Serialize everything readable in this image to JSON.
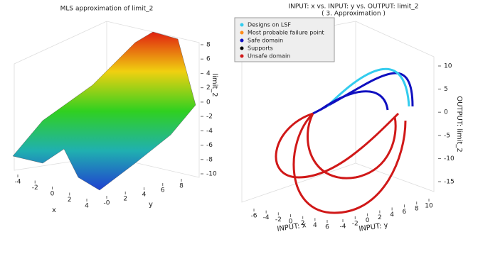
{
  "chart_data": [
    {
      "type": "surface3d",
      "title": "MLS approximation of limit_2",
      "xlabel": "x",
      "ylabel": "y",
      "zlabel": "limit_2",
      "xlim": [
        -4,
        4
      ],
      "xticks": [
        -4,
        -2,
        0,
        2,
        4
      ],
      "ylim": [
        0,
        8
      ],
      "yticks": [
        {
          "value": 0,
          "label": "-0"
        },
        2,
        4,
        6,
        8
      ],
      "zlim": [
        -10,
        8
      ],
      "zticks": [
        8,
        6,
        4,
        2,
        0,
        -2,
        -4,
        -6,
        -8,
        -10
      ]
    },
    {
      "type": "scatter3d",
      "title": "INPUT: x vs. INPUT: y vs. OUTPUT: limit_2",
      "subtitle": "( 3. Approximation )",
      "xlabel": "INPUT: x",
      "ylabel": "INPUT: y",
      "zlabel": "OUTPUT: limit_2",
      "xlim": [
        -6,
        6
      ],
      "xticks": [
        -6,
        -4,
        -2,
        0,
        2,
        4,
        6
      ],
      "ylim": [
        -4,
        10
      ],
      "yticks": [
        -4,
        -2,
        0,
        2,
        4,
        6,
        8,
        10
      ],
      "zlim": [
        -15,
        10
      ],
      "zticks": [
        10,
        5,
        0,
        -5,
        -10,
        -15
      ],
      "series": [
        {
          "name": "Designs on LSF",
          "color": "#33ccee"
        },
        {
          "name": "Most probable failure point",
          "color": "#ff8c1a"
        },
        {
          "name": "Safe domain",
          "color": "#1010c0"
        },
        {
          "name": "Supports",
          "color": "#000000"
        },
        {
          "name": "Unsafe domain",
          "color": "#d01818"
        }
      ]
    }
  ]
}
